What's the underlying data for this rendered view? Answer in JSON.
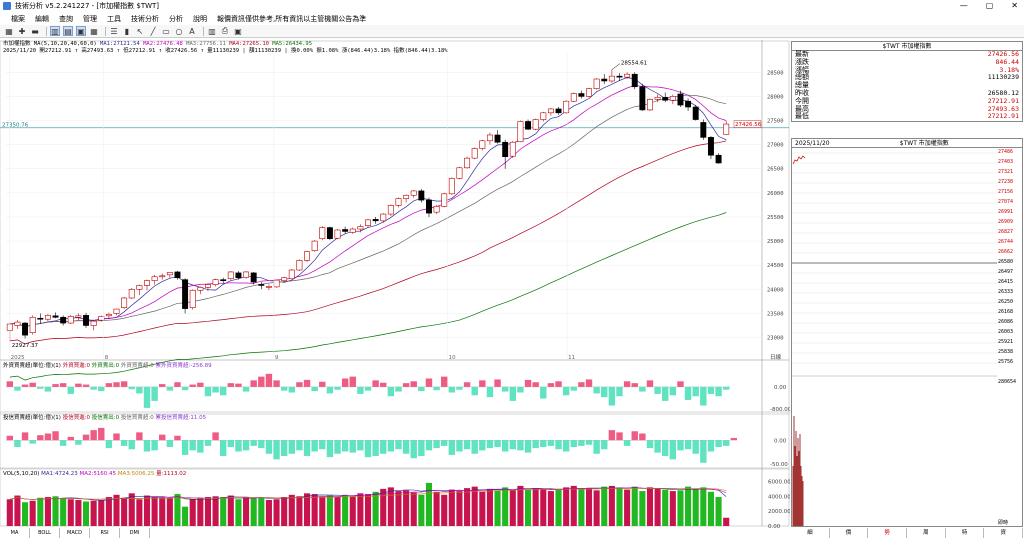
{
  "window": {
    "title": "技術分析 v5.2.241227 - [市加權指數 $TWT]",
    "controls": [
      "—",
      "▢",
      "✕"
    ]
  },
  "menu": [
    "檔案",
    "編輯",
    "查詢",
    "管理",
    "工具",
    "技術分析",
    "分析",
    "說明",
    "報價資訊僅供參考,所有資訊以主管機關公告為準"
  ],
  "chart": {
    "symbol_line": "市加權指數 MA(5,10,20,40,60,0)",
    "ma_values": [
      {
        "label": "MA1:27121.54",
        "color": "#2a2a9c"
      },
      {
        "label": "MA2:27476.48",
        "color": "#c000c0"
      },
      {
        "label": "MA3:27756.11",
        "color": "#666666"
      },
      {
        "label": "MA4:27265.10",
        "color": "#b00020"
      },
      {
        "label": "MA5:26434.95",
        "color": "#007000"
      }
    ],
    "ohlc_line": "2025/11/20 開27212.91 ↑ 高27493.63 ↑ 低27212.91 ↑ 收27426.56 ↑ 量11130239 | 額11130239 | 換0.00% 振1.08% 漲(846.44)3.18% 指數(846.44)3.18%",
    "price_axis": [
      "28500",
      "28000",
      "27500",
      "27000",
      "26500",
      "26000",
      "25500",
      "25000",
      "24500",
      "24000",
      "23500",
      "23000"
    ],
    "price_min": 22700,
    "price_max": 28900,
    "ref_line_value": "27350.76",
    "ref_line": 27350.76,
    "last_price_tag": "27426.56",
    "high_marker": "28554.61",
    "low_marker": "22927.37",
    "x_labels": [
      "2025",
      "8",
      "9",
      "10",
      "11"
    ],
    "period_label": "日線",
    "candles": [
      [
        23150,
        23310,
        22930,
        23280
      ],
      [
        23250,
        23360,
        23180,
        23320
      ],
      [
        23300,
        23320,
        22980,
        23050
      ],
      [
        23100,
        23460,
        23060,
        23420
      ],
      [
        23400,
        23500,
        23280,
        23380
      ],
      [
        23380,
        23490,
        23340,
        23460
      ],
      [
        23450,
        23520,
        23400,
        23420
      ],
      [
        23420,
        23460,
        23250,
        23300
      ],
      [
        23300,
        23470,
        23280,
        23440
      ],
      [
        23420,
        23500,
        23360,
        23450
      ],
      [
        23460,
        23510,
        23200,
        23250
      ],
      [
        23250,
        23370,
        23150,
        23340
      ],
      [
        23360,
        23460,
        23330,
        23440
      ],
      [
        23450,
        23520,
        23380,
        23480
      ],
      [
        23500,
        23600,
        23460,
        23590
      ],
      [
        23620,
        23840,
        23590,
        23820
      ],
      [
        23820,
        24030,
        23800,
        24000
      ],
      [
        24000,
        24100,
        23880,
        24080
      ],
      [
        24080,
        24200,
        23980,
        24180
      ],
      [
        24180,
        24300,
        24100,
        24260
      ],
      [
        24260,
        24330,
        24200,
        24280
      ],
      [
        24300,
        24360,
        24240,
        24350
      ],
      [
        24360,
        24380,
        24200,
        24240
      ],
      [
        24200,
        24230,
        23500,
        23600
      ],
      [
        23620,
        24000,
        23580,
        23980
      ],
      [
        23980,
        24060,
        23900,
        24040
      ],
      [
        24040,
        24120,
        23960,
        24100
      ],
      [
        24100,
        24220,
        24060,
        24200
      ],
      [
        24200,
        24240,
        24120,
        24190
      ],
      [
        24220,
        24380,
        24190,
        24360
      ],
      [
        24340,
        24380,
        24200,
        24240
      ],
      [
        24250,
        24380,
        24220,
        24360
      ],
      [
        24340,
        24360,
        24100,
        24150
      ],
      [
        24100,
        24150,
        24000,
        24080
      ],
      [
        24060,
        24100,
        23980,
        24060
      ],
      [
        24050,
        24200,
        24030,
        24190
      ],
      [
        24180,
        24260,
        24150,
        24240
      ],
      [
        24220,
        24420,
        24210,
        24400
      ],
      [
        24400,
        24620,
        24380,
        24600
      ],
      [
        24600,
        24800,
        24560,
        24780
      ],
      [
        24800,
        25020,
        24780,
        25000
      ],
      [
        25050,
        25310,
        25020,
        25280
      ],
      [
        25280,
        25300,
        25020,
        25050
      ],
      [
        25060,
        25250,
        25040,
        25230
      ],
      [
        25240,
        25300,
        25160,
        25200
      ],
      [
        25180,
        25280,
        25150,
        25250
      ],
      [
        25250,
        25350,
        25180,
        25300
      ],
      [
        25320,
        25460,
        25280,
        25440
      ],
      [
        25450,
        25500,
        25360,
        25420
      ],
      [
        25420,
        25580,
        25380,
        25560
      ],
      [
        25560,
        25760,
        25520,
        25740
      ],
      [
        25740,
        25900,
        25700,
        25880
      ],
      [
        25880,
        25970,
        25800,
        25950
      ],
      [
        25950,
        26060,
        25900,
        26040
      ],
      [
        26040,
        26080,
        25800,
        25850
      ],
      [
        25850,
        25900,
        25500,
        25580
      ],
      [
        25600,
        25750,
        25560,
        25720
      ],
      [
        25720,
        26000,
        25700,
        25980
      ],
      [
        25980,
        26320,
        25960,
        26300
      ],
      [
        26300,
        26540,
        26280,
        26520
      ],
      [
        26520,
        26750,
        26500,
        26720
      ],
      [
        26720,
        26940,
        26700,
        26920
      ],
      [
        26920,
        27100,
        26880,
        27080
      ],
      [
        27080,
        27250,
        27000,
        27200
      ],
      [
        27200,
        27300,
        27020,
        27050
      ],
      [
        27050,
        27100,
        26500,
        26750
      ],
      [
        26760,
        27080,
        26720,
        27050
      ],
      [
        27060,
        27500,
        27050,
        27480
      ],
      [
        27480,
        27520,
        27300,
        27320
      ],
      [
        27320,
        27540,
        27300,
        27520
      ],
      [
        27520,
        27680,
        27480,
        27660
      ],
      [
        27660,
        27760,
        27600,
        27740
      ],
      [
        27740,
        27780,
        27620,
        27660
      ],
      [
        27660,
        27920,
        27640,
        27900
      ],
      [
        27900,
        28080,
        27880,
        28060
      ],
      [
        28060,
        28120,
        27960,
        28000
      ],
      [
        28000,
        28180,
        27980,
        28160
      ],
      [
        28160,
        28380,
        28140,
        28360
      ],
      [
        28360,
        28460,
        28260,
        28320
      ],
      [
        28320,
        28554,
        28280,
        28420
      ],
      [
        28420,
        28480,
        28320,
        28400
      ],
      [
        28400,
        28500,
        28360,
        28460
      ],
      [
        28460,
        28500,
        28150,
        28200
      ],
      [
        28200,
        28260,
        27700,
        27720
      ],
      [
        27720,
        27960,
        27700,
        27940
      ],
      [
        27940,
        28040,
        27880,
        27980
      ],
      [
        27980,
        28080,
        27880,
        27920
      ],
      [
        27920,
        28040,
        27840,
        28000
      ],
      [
        28050,
        28120,
        27780,
        27820
      ],
      [
        27900,
        27960,
        27700,
        27780
      ],
      [
        27780,
        27820,
        27500,
        27520
      ],
      [
        27460,
        27520,
        27100,
        27150
      ],
      [
        27150,
        27180,
        26700,
        26780
      ],
      [
        26780,
        26820,
        26600,
        26620
      ],
      [
        27212.91,
        27493.63,
        27212.91,
        27426.56
      ]
    ],
    "foreign": {
      "label": "外資買賣超(單位:億)(1)",
      "legend": [
        {
          "label": "外資買進:0",
          "color": "#c00000"
        },
        {
          "label": "外資賣出:0",
          "color": "#009000"
        },
        {
          "label": "外資買賣超:0",
          "color": "#333333"
        },
        {
          "label": "累外資買賣超:-256.89",
          "color": "#8a3ccf"
        }
      ],
      "axis": [
        "0.00",
        "-800.00"
      ],
      "values": [
        12,
        -8,
        5,
        9,
        -4,
        -10,
        6,
        8,
        -15,
        7,
        5,
        -6,
        -9,
        8,
        10,
        12,
        -5,
        -14,
        -45,
        -30,
        6,
        -8,
        10,
        -7,
        5,
        9,
        -20,
        -12,
        -18,
        8,
        7,
        -10,
        14,
        22,
        28,
        14,
        -8,
        -12,
        10,
        15,
        -9,
        11,
        -14,
        -6,
        18,
        22,
        -15,
        -8,
        14,
        9,
        -20,
        -10,
        8,
        12,
        -9,
        18,
        -7,
        22,
        -12,
        -6,
        10,
        -18,
        14,
        -22,
        16,
        -10,
        -30,
        -12,
        15,
        10,
        -25,
        8,
        12,
        -18,
        -8,
        10,
        16,
        -14,
        -22,
        -40,
        -20,
        12,
        8,
        -10,
        14,
        -15,
        -30,
        -18,
        12,
        -28,
        -20,
        -40,
        -15,
        -20,
        -6
      ]
    },
    "dealer": {
      "label": "投信買賣超(單位:億)(1)",
      "legend": [
        {
          "label": "投信買進:0",
          "color": "#c00000"
        },
        {
          "label": "投信賣出:0",
          "color": "#009000"
        },
        {
          "label": "投信買賣超:0",
          "color": "#333333"
        },
        {
          "label": "累投信買賣超:11.05",
          "color": "#8a3ccf"
        }
      ],
      "axis": [
        "0.00",
        "-50.00"
      ],
      "values": [
        8,
        -12,
        14,
        -6,
        9,
        12,
        16,
        -10,
        6,
        -8,
        10,
        18,
        22,
        -14,
        12,
        -10,
        -16,
        14,
        -20,
        -18,
        10,
        -12,
        8,
        -26,
        -18,
        -22,
        -10,
        14,
        -28,
        -12,
        -20,
        -18,
        -10,
        -14,
        -24,
        -34,
        -28,
        -24,
        -18,
        -28,
        -20,
        -16,
        -30,
        -24,
        -20,
        -22,
        -18,
        -30,
        -28,
        -24,
        -20,
        -16,
        -24,
        -32,
        -28,
        -18,
        -14,
        -10,
        -26,
        -20,
        -16,
        -24,
        -18,
        -14,
        -12,
        -20,
        -16,
        -18,
        -22,
        -14,
        -12,
        -10,
        -16,
        -20,
        -12,
        -10,
        -8,
        -24,
        -16,
        18,
        14,
        -10,
        16,
        12,
        -14,
        -22,
        -28,
        -34,
        -18,
        -16,
        -24,
        -40,
        -20,
        -12,
        -10,
        4
      ]
    },
    "volume": {
      "label": "VOL(5,10,20)",
      "legend": [
        {
          "label": "MA1:4724.23",
          "color": "#2a2a9c"
        },
        {
          "label": "MA2:5160.45",
          "color": "#c000c0"
        },
        {
          "label": "MA3:5006.25",
          "color": "#bb8800"
        },
        {
          "label": "量:1113.02",
          "color": "#b00020"
        }
      ],
      "axis": [
        "6000.00",
        "4000.00",
        "2000.00",
        "0.00"
      ],
      "max": 7000,
      "values": [
        3600,
        4100,
        3200,
        3400,
        3800,
        3900,
        4000,
        3700,
        3600,
        3500,
        3300,
        3400,
        3500,
        3900,
        4200,
        3800,
        4400,
        3600,
        4100,
        3900,
        3800,
        3700,
        4300,
        2600,
        3600,
        3800,
        3900,
        4000,
        3900,
        4100,
        3600,
        3900,
        3700,
        3800,
        3500,
        3600,
        3900,
        4200,
        4000,
        4400,
        4300,
        4000,
        4100,
        3900,
        4200,
        4000,
        4400,
        4300,
        4600,
        5000,
        5200,
        4700,
        4800,
        4500,
        4200,
        5800,
        4600,
        4200,
        4900,
        4700,
        5100,
        5300,
        4600,
        5000,
        4800,
        5200,
        4800,
        5400,
        4900,
        5100,
        5000,
        4700,
        4900,
        5200,
        5400,
        5000,
        5100,
        4800,
        5300,
        5400,
        5100,
        4900,
        5300,
        4700,
        5200,
        5000,
        4900,
        4700,
        4800,
        5300,
        5000,
        5200,
        4600,
        3900,
        1113
      ]
    },
    "bottom_tabs": [
      "MA",
      "BOLL",
      "MACD",
      "RSI",
      "DMI"
    ]
  },
  "quote": {
    "header": "$TWT 市加權指數",
    "rows": [
      {
        "label": "最新",
        "value": "27426.56",
        "cls": "up"
      },
      {
        "label": "漲跌",
        "value": "846.44",
        "cls": "up"
      },
      {
        "label": "漲幅",
        "value": "3.18%",
        "cls": "up"
      },
      {
        "label": "總額",
        "value": "11130239",
        "cls": "blk"
      },
      {
        "label": "總量",
        "value": "",
        "cls": "blk"
      },
      {
        "label": "昨收",
        "value": "26580.12",
        "cls": "blk"
      },
      {
        "label": "今開",
        "value": "27212.91",
        "cls": "up"
      },
      {
        "label": "最高",
        "value": "27493.63",
        "cls": "up"
      },
      {
        "label": "最低",
        "value": "27212.91",
        "cls": "up"
      }
    ]
  },
  "tick": {
    "date": "2025/11/20",
    "header": "$TWT 市加權指數",
    "scale": [
      "27486",
      "27403",
      "27321",
      "27238",
      "27156",
      "27074",
      "26991",
      "26909",
      "26827",
      "26744",
      "26662",
      "26580",
      "26497",
      "26415",
      "26333",
      "26250",
      "26168",
      "26086",
      "26003",
      "25921",
      "25838",
      "25756"
    ],
    "vol_top": "280654",
    "time_label": "即時",
    "tabs": [
      "細",
      "價",
      "勢",
      "周",
      "特",
      "資"
    ],
    "active_tab": "勢"
  }
}
